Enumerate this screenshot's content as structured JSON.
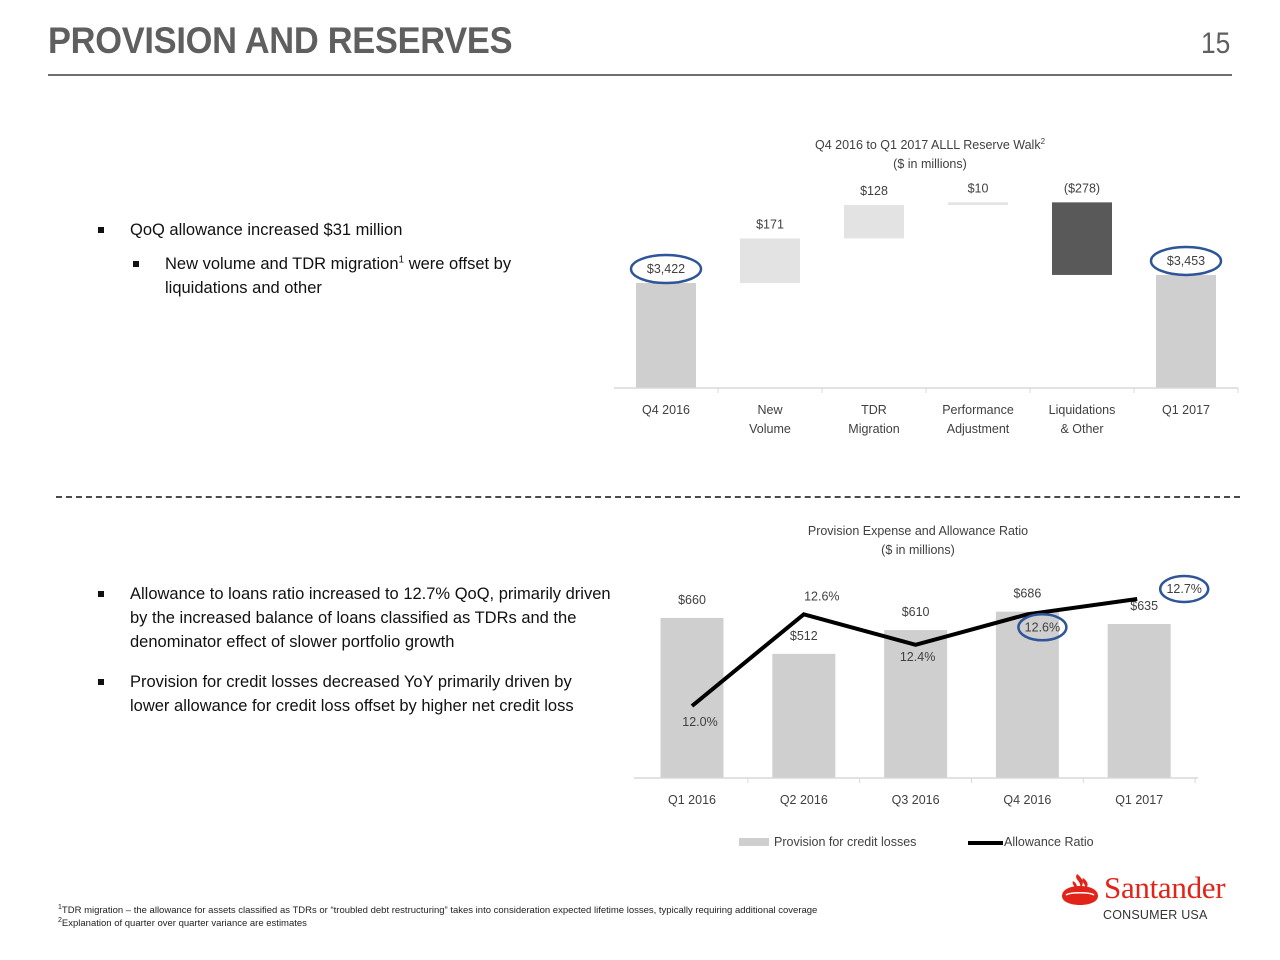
{
  "header": {
    "title": "PROVISION AND RESERVES",
    "page_number": "15"
  },
  "top_section": {
    "bullets": [
      {
        "text": "QoQ allowance increased $31 million",
        "level": 1
      },
      {
        "text_before": "New volume and TDR migration",
        "sup": "1",
        "text_after": " were offset by liquidations and other",
        "level": 2
      }
    ]
  },
  "bottom_section": {
    "bullets": [
      {
        "text": "Allowance to loans ratio increased to 12.7% QoQ, primarily driven by the increased balance of loans classified as TDRs and the denominator effect of slower portfolio growth"
      },
      {
        "text": "Provision for credit losses decreased YoY primarily driven by lower allowance for credit loss offset by higher net credit loss"
      }
    ]
  },
  "chart_data": [
    {
      "type": "bar",
      "subtype": "waterfall",
      "title": "Q4 2016 to Q1 2017 ALLL Reserve Walk",
      "title_sup": "2",
      "subtitle": "($ in millions)",
      "categories": [
        [
          "Q4 2016"
        ],
        [
          "New",
          "Volume"
        ],
        [
          "TDR",
          "Migration"
        ],
        [
          "Performance",
          "Adjustment"
        ],
        [
          "Liquidations",
          "& Other"
        ],
        [
          "Q1 2017"
        ]
      ],
      "values": [
        3422,
        171,
        128,
        10,
        -278,
        3453
      ],
      "kinds": [
        "total",
        "increase",
        "increase",
        "increase",
        "decrease",
        "total"
      ],
      "labels": [
        "$3,422",
        "$171",
        "$128",
        "$10",
        "($278)",
        "$3,453"
      ],
      "highlighted": [
        "$3,422",
        "$3,453"
      ],
      "colors": {
        "total": "#d0cfcf",
        "increase": "#e3e3e3",
        "decrease": "#595959",
        "highlight": "#2e5597"
      },
      "ylim": [
        3020,
        3740
      ],
      "grid": false
    },
    {
      "type": "bar",
      "subtype": "bar+line",
      "title": "Provision Expense and Allowance Ratio",
      "subtitle": "($ in millions)",
      "categories": [
        "Q1 2016",
        "Q2 2016",
        "Q3 2016",
        "Q4 2016",
        "Q1 2017"
      ],
      "series": [
        {
          "name": "Provision for credit losses",
          "type": "bar",
          "values": [
            660,
            512,
            610,
            686,
            635
          ],
          "labels": [
            "$660",
            "$512",
            "$610",
            "$686",
            "$635"
          ],
          "color": "#d0cfcf"
        },
        {
          "name": "Allowance Ratio",
          "type": "line",
          "values": [
            12.0,
            12.6,
            12.4,
            12.6,
            12.7
          ],
          "labels": [
            "12.0%",
            "12.6%",
            "12.4%",
            "12.6%",
            "12.7%"
          ],
          "color": "#000000"
        }
      ],
      "highlighted": [
        "12.6%",
        "12.7%"
      ],
      "legend": "bottom",
      "ylim_bars": [
        0,
        800
      ],
      "ylim_line": [
        11.5,
        13.0
      ],
      "grid": false
    }
  ],
  "footnotes": [
    {
      "sup": "1",
      "text": "TDR migration – the allowance for assets classified as TDRs or “troubled debt restructuring” takes into consideration expected lifetime losses, typically requiring additional coverage"
    },
    {
      "sup": "2",
      "text": "Explanation of quarter over quarter variance are estimates"
    }
  ],
  "logo": {
    "brand": "Santander",
    "sub": "CONSUMER USA",
    "color": "#e2231a"
  }
}
